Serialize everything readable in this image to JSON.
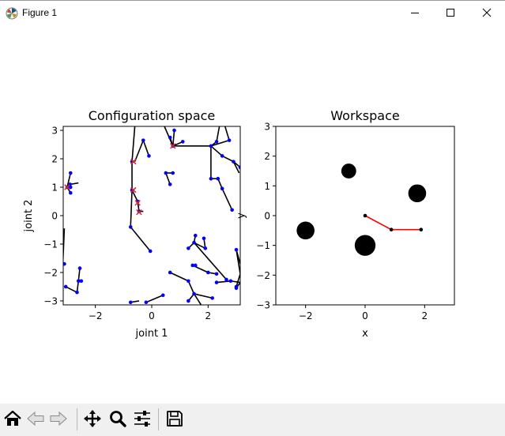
{
  "window": {
    "title": "Figure 1"
  },
  "colors": {
    "path": "#000000",
    "node": "#0000ff",
    "marker": "#d62728",
    "arm": "#ff0000",
    "obstacle": "#000000",
    "toolbar_bg": "#f0f0f0"
  },
  "icons": {
    "app": "matplotlib-icon",
    "minimize": "minimize-icon",
    "maximize": "maximize-icon",
    "close": "close-icon",
    "home": "home-icon",
    "back": "back-arrow-icon",
    "forward": "forward-arrow-icon",
    "pan": "move-icon",
    "zoom": "magnifier-icon",
    "configure": "sliders-icon",
    "save": "save-icon"
  },
  "chart_data": [
    {
      "type": "scatter",
      "title": "Configuration space",
      "xlabel": "joint 1",
      "ylabel": "joint 2",
      "xlim": [
        -3.14,
        3.14
      ],
      "ylim": [
        -3.14,
        3.14
      ],
      "xticks": [
        -2,
        0,
        2
      ],
      "xtick_labels": [
        "−2",
        "0",
        "2"
      ],
      "yticks": [
        -3,
        -2,
        -1,
        0,
        1,
        2,
        3
      ],
      "ytick_labels": [
        "−3",
        "−2",
        "−1",
        "0",
        "1",
        "2",
        "3"
      ],
      "grid": false,
      "edges": [
        [
          [
            -2.88,
            1.5
          ],
          [
            -3.0,
            1.0
          ]
        ],
        [
          [
            -3.0,
            1.0
          ],
          [
            -2.88,
            0.8
          ]
        ],
        [
          [
            -3.0,
            1.0
          ],
          [
            -2.9,
            1.1
          ]
        ],
        [
          [
            -2.9,
            1.1
          ],
          [
            -2.6,
            1.15
          ]
        ],
        [
          [
            -2.9,
            1.1
          ],
          [
            -2.88,
            1.0
          ]
        ],
        [
          [
            -3.1,
            -0.45
          ],
          [
            -3.15,
            -1.6
          ]
        ],
        [
          [
            -3.05,
            -2.5
          ],
          [
            -2.65,
            -2.7
          ]
        ],
        [
          [
            -2.65,
            -2.7
          ],
          [
            -2.6,
            -2.3
          ]
        ],
        [
          [
            -2.6,
            -2.3
          ],
          [
            -2.55,
            -1.85
          ]
        ],
        [
          [
            -2.6,
            -2.3
          ],
          [
            -2.5,
            -2.3
          ]
        ],
        [
          [
            -0.6,
            3.14
          ],
          [
            -0.7,
            1.9
          ]
        ],
        [
          [
            -0.7,
            1.9
          ],
          [
            -0.7,
            0.9
          ]
        ],
        [
          [
            -0.7,
            0.9
          ],
          [
            -0.75,
            -0.4
          ]
        ],
        [
          [
            -0.7,
            0.9
          ],
          [
            -0.5,
            0.5
          ]
        ],
        [
          [
            -0.5,
            0.5
          ],
          [
            -0.45,
            0.45
          ]
        ],
        [
          [
            -0.5,
            0.5
          ],
          [
            -0.45,
            0.15
          ]
        ],
        [
          [
            -0.45,
            0.15
          ],
          [
            -0.3,
            0.15
          ]
        ],
        [
          [
            -0.75,
            -0.4
          ],
          [
            -0.05,
            -1.25
          ]
        ],
        [
          [
            -0.6,
            1.9
          ],
          [
            -0.3,
            2.65
          ]
        ],
        [
          [
            -0.3,
            2.65
          ],
          [
            -0.1,
            2.1
          ]
        ],
        [
          [
            0.75,
            2.45
          ],
          [
            0.8,
            3.0
          ]
        ],
        [
          [
            0.75,
            2.45
          ],
          [
            0.65,
            2.75
          ]
        ],
        [
          [
            0.75,
            2.45
          ],
          [
            1.1,
            2.6
          ]
        ],
        [
          [
            0.75,
            2.45
          ],
          [
            2.1,
            2.45
          ]
        ],
        [
          [
            0.75,
            2.45
          ],
          [
            0.45,
            3.14
          ]
        ],
        [
          [
            2.1,
            2.45
          ],
          [
            2.1,
            1.3
          ]
        ],
        [
          [
            2.1,
            2.45
          ],
          [
            2.3,
            2.6
          ]
        ],
        [
          [
            2.1,
            2.45
          ],
          [
            2.75,
            2.65
          ]
        ],
        [
          [
            2.75,
            2.65
          ],
          [
            2.6,
            3.14
          ]
        ],
        [
          [
            2.3,
            2.6
          ],
          [
            2.4,
            3.14
          ]
        ],
        [
          [
            2.1,
            2.45
          ],
          [
            2.5,
            2.1
          ]
        ],
        [
          [
            2.5,
            2.1
          ],
          [
            2.9,
            1.9
          ]
        ],
        [
          [
            2.9,
            1.9
          ],
          [
            3.14,
            1.7
          ]
        ],
        [
          [
            2.9,
            1.9
          ],
          [
            3.1,
            1.5
          ]
        ],
        [
          [
            2.1,
            1.3
          ],
          [
            2.35,
            1.3
          ]
        ],
        [
          [
            2.35,
            1.3
          ],
          [
            2.5,
            0.95
          ]
        ],
        [
          [
            2.5,
            0.95
          ],
          [
            2.85,
            0.2
          ]
        ],
        [
          [
            0.5,
            1.5
          ],
          [
            0.75,
            1.5
          ]
        ],
        [
          [
            0.5,
            1.5
          ],
          [
            0.65,
            1.1
          ]
        ],
        [
          [
            1.5,
            -0.95
          ],
          [
            1.3,
            -1.15
          ]
        ],
        [
          [
            1.5,
            -0.95
          ],
          [
            1.9,
            -1.15
          ]
        ],
        [
          [
            1.5,
            -0.95
          ],
          [
            1.55,
            -0.7
          ]
        ],
        [
          [
            1.5,
            -0.95
          ],
          [
            2.65,
            -2.25
          ]
        ],
        [
          [
            1.9,
            -1.15
          ],
          [
            1.85,
            -0.8
          ]
        ],
        [
          [
            1.45,
            -1.75
          ],
          [
            2.0,
            -2.0
          ]
        ],
        [
          [
            1.45,
            -1.75
          ],
          [
            1.55,
            -1.75
          ]
        ],
        [
          [
            2.0,
            -2.0
          ],
          [
            2.3,
            -2.05
          ]
        ],
        [
          [
            0.65,
            -2.0
          ],
          [
            1.3,
            -2.3
          ]
        ],
        [
          [
            1.3,
            -2.3
          ],
          [
            1.5,
            -2.75
          ]
        ],
        [
          [
            1.5,
            -2.75
          ],
          [
            1.3,
            -3.0
          ]
        ],
        [
          [
            1.5,
            -2.75
          ],
          [
            2.15,
            -2.9
          ]
        ],
        [
          [
            1.5,
            -2.75
          ],
          [
            1.75,
            -3.14
          ]
        ],
        [
          [
            -0.2,
            -3.05
          ],
          [
            0.4,
            -2.8
          ]
        ],
        [
          [
            -0.75,
            -3.05
          ],
          [
            -0.45,
            -3.0
          ]
        ],
        [
          [
            3.0,
            -1.2
          ],
          [
            3.14,
            -1.7
          ]
        ],
        [
          [
            3.0,
            -1.2
          ],
          [
            3.14,
            -2.05
          ]
        ],
        [
          [
            3.14,
            -2.05
          ],
          [
            3.0,
            -2.5
          ]
        ],
        [
          [
            2.3,
            -2.35
          ],
          [
            2.8,
            -2.3
          ]
        ],
        [
          [
            2.8,
            -2.3
          ],
          [
            3.14,
            -2.35
          ]
        ],
        [
          [
            3.14,
            -2.35
          ],
          [
            3.0,
            -2.55
          ]
        ]
      ],
      "nodes": [
        [
          -2.88,
          1.5
        ],
        [
          -3.0,
          1.0
        ],
        [
          -2.88,
          0.8
        ],
        [
          -2.9,
          1.1
        ],
        [
          -2.88,
          1.0
        ],
        [
          -3.1,
          -1.7
        ],
        [
          -3.05,
          -2.5
        ],
        [
          -2.65,
          -2.7
        ],
        [
          -2.6,
          -2.3
        ],
        [
          -2.55,
          -1.85
        ],
        [
          -2.5,
          -2.3
        ],
        [
          -0.7,
          1.9
        ],
        [
          -0.7,
          0.9
        ],
        [
          -0.75,
          -0.4
        ],
        [
          -0.5,
          0.5
        ],
        [
          -0.45,
          0.15
        ],
        [
          -0.05,
          -1.25
        ],
        [
          -0.3,
          2.65
        ],
        [
          -0.1,
          2.1
        ],
        [
          0.75,
          2.45
        ],
        [
          0.8,
          3.0
        ],
        [
          0.65,
          2.75
        ],
        [
          1.1,
          2.6
        ],
        [
          2.1,
          2.45
        ],
        [
          2.3,
          2.6
        ],
        [
          2.75,
          2.65
        ],
        [
          2.5,
          2.1
        ],
        [
          2.9,
          1.9
        ],
        [
          3.14,
          1.7
        ],
        [
          2.1,
          1.3
        ],
        [
          2.35,
          1.3
        ],
        [
          2.5,
          0.95
        ],
        [
          2.85,
          0.2
        ],
        [
          0.5,
          1.5
        ],
        [
          0.75,
          1.5
        ],
        [
          0.65,
          1.1
        ],
        [
          1.5,
          -0.95
        ],
        [
          1.3,
          -1.15
        ],
        [
          1.9,
          -1.15
        ],
        [
          1.55,
          -0.7
        ],
        [
          1.85,
          -0.8
        ],
        [
          2.65,
          -2.25
        ],
        [
          1.45,
          -1.75
        ],
        [
          1.55,
          -1.75
        ],
        [
          2.0,
          -2.0
        ],
        [
          2.3,
          -2.05
        ],
        [
          0.65,
          -2.0
        ],
        [
          1.3,
          -2.3
        ],
        [
          1.5,
          -2.75
        ],
        [
          1.3,
          -3.0
        ],
        [
          2.15,
          -2.9
        ],
        [
          -0.2,
          -3.05
        ],
        [
          0.4,
          -2.8
        ],
        [
          -0.75,
          -3.05
        ],
        [
          3.0,
          -1.2
        ],
        [
          3.0,
          -2.5
        ],
        [
          2.3,
          -2.35
        ],
        [
          2.8,
          -2.3
        ],
        [
          3.0,
          -2.55
        ]
      ],
      "markers": [
        [
          -3.0,
          1.0
        ],
        [
          -0.65,
          1.9
        ],
        [
          -0.65,
          0.9
        ],
        [
          -0.5,
          0.45
        ],
        [
          -0.45,
          0.12
        ],
        [
          0.75,
          2.45
        ]
      ]
    },
    {
      "type": "scatter",
      "title": "Workspace",
      "xlabel": "x",
      "ylabel": "y",
      "xlim": [
        -3,
        3
      ],
      "ylim": [
        -3,
        3
      ],
      "xticks": [
        -2,
        0,
        2
      ],
      "xtick_labels": [
        "−2",
        "0",
        "2"
      ],
      "yticks": [
        -3,
        -2,
        -1,
        0,
        1,
        2,
        3
      ],
      "ytick_labels": [
        "−3",
        "−2",
        "−1",
        "0",
        "1",
        "2",
        "3"
      ],
      "grid": false,
      "obstacles": [
        {
          "x": -2.0,
          "y": -0.5,
          "r": 0.3
        },
        {
          "x": -0.55,
          "y": 1.5,
          "r": 0.25
        },
        {
          "x": 1.75,
          "y": 0.75,
          "r": 0.3
        },
        {
          "x": 0.0,
          "y": -1.0,
          "r": 0.35
        }
      ],
      "arm": [
        [
          0.0,
          0.0
        ],
        [
          0.88,
          -0.47
        ],
        [
          1.88,
          -0.47
        ]
      ]
    }
  ]
}
